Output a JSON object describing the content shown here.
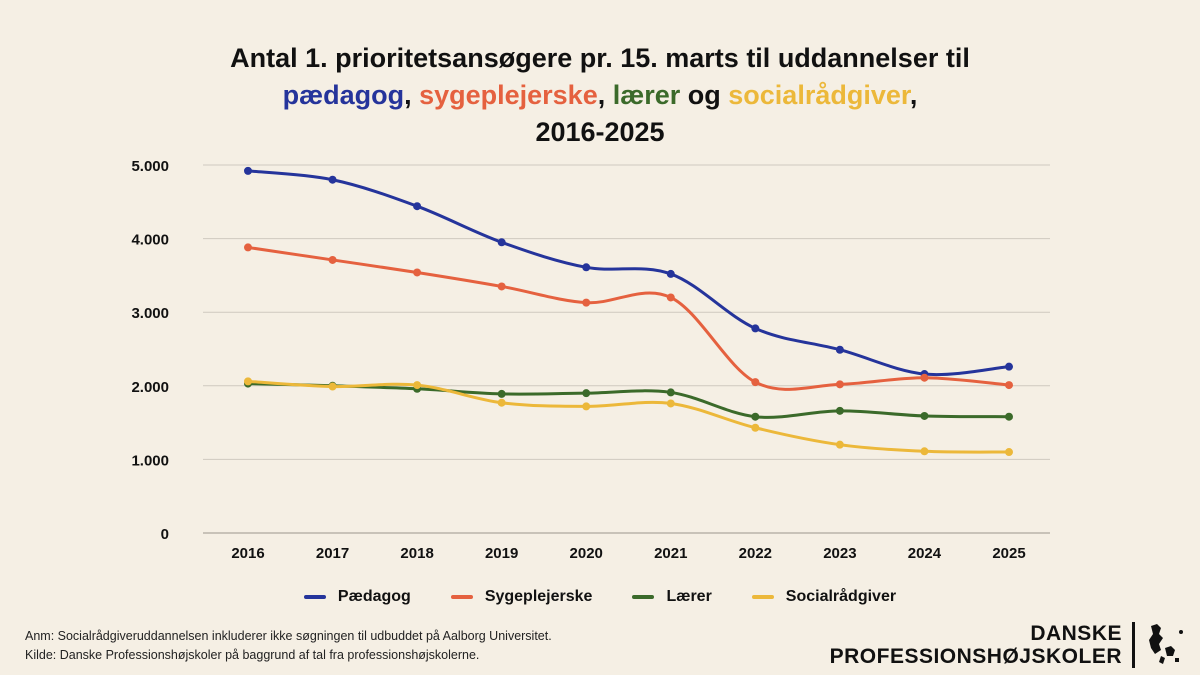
{
  "title": {
    "line1": "Antal 1. prioritetsansøgere pr. 15. marts til uddannelser til",
    "line2": {
      "w1": "pædagog",
      "sep1": ", ",
      "w2": "sygeplejerske",
      "sep2": ", ",
      "w3": "lærer",
      "sep3": " og ",
      "w4": "socialrådgiver",
      "sep4": ","
    },
    "line3": "2016-2025"
  },
  "chart_data": {
    "type": "line",
    "x": [
      "2016",
      "2017",
      "2018",
      "2019",
      "2020",
      "2021",
      "2022",
      "2023",
      "2024",
      "2025"
    ],
    "ylim": [
      0,
      5000
    ],
    "yticks": [
      "0",
      "1.000",
      "2.000",
      "3.000",
      "4.000",
      "5.000"
    ],
    "ytick_values": [
      0,
      1000,
      2000,
      3000,
      4000,
      5000
    ],
    "grid": true,
    "legend_position": "bottom",
    "series": [
      {
        "name": "Pædagog",
        "color": "#25349b",
        "values": [
          4920,
          4800,
          4440,
          3950,
          3610,
          3520,
          2780,
          2490,
          2160,
          2260
        ]
      },
      {
        "name": "Sygeplejerske",
        "color": "#e5613f",
        "values": [
          3880,
          3710,
          3540,
          3350,
          3130,
          3200,
          2050,
          2020,
          2110,
          2010
        ]
      },
      {
        "name": "Lærer",
        "color": "#3b6a2a",
        "values": [
          2030,
          2000,
          1960,
          1890,
          1900,
          1910,
          1580,
          1660,
          1590,
          1580
        ]
      },
      {
        "name": "Socialrådgiver",
        "color": "#ecb83a",
        "values": [
          2060,
          1990,
          2010,
          1770,
          1720,
          1760,
          1430,
          1200,
          1110,
          1100
        ]
      }
    ]
  },
  "footnote": {
    "line1": "Anm: Socialrådgiveruddannelsen inkluderer ikke søgningen til udbuddet på Aalborg Universitet.",
    "line2": "Kilde: Danske Professionshøjskoler på baggrund af tal fra professionshøjskolerne."
  },
  "logo": {
    "line1": "DANSKE",
    "line2": "PROFESSIONSHØJSKOLER",
    "icon": "denmark-map-icon"
  }
}
